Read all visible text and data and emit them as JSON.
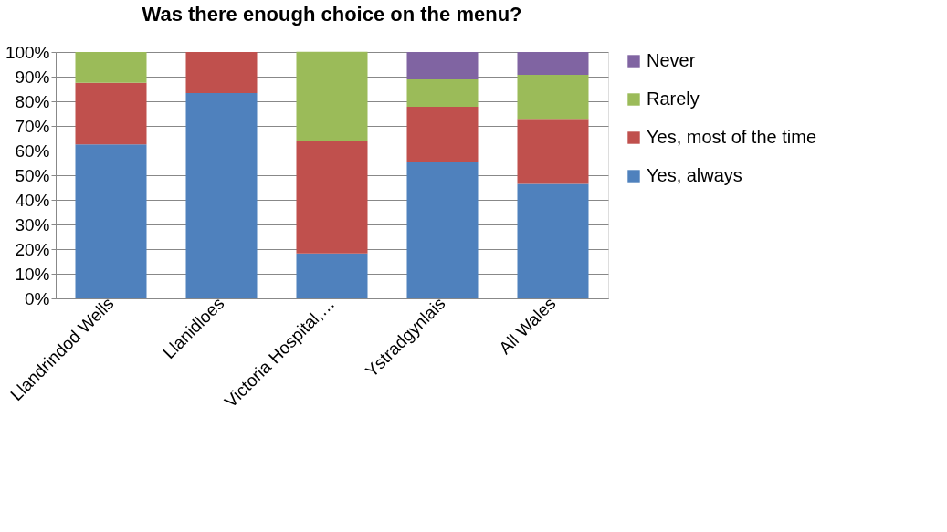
{
  "chart_data": {
    "type": "bar",
    "title": "Was there enough choice on the menu?",
    "stacked": true,
    "categories": [
      "Llandrindod Wells",
      "Llanidloes",
      "Victoria Hospital,…",
      "Ystradgynlais",
      "All Wales"
    ],
    "series": [
      {
        "name": "Yes, always",
        "color": "#4f81bd",
        "values": [
          62.5,
          83.3,
          18.2,
          55.6,
          46.5
        ]
      },
      {
        "name": "Yes, most of the time",
        "color": "#c0504d",
        "values": [
          25,
          16.7,
          45.5,
          22.2,
          26.4
        ]
      },
      {
        "name": "Rarely",
        "color": "#9bbb59",
        "values": [
          12.5,
          null,
          36.4,
          11.1,
          17.8
        ]
      },
      {
        "name": "Never",
        "color": "#8064a2",
        "values": [
          null,
          null,
          null,
          11.1,
          9.3
        ]
      }
    ],
    "ylim": [
      0,
      100
    ],
    "yticks": [
      {
        "value": 0,
        "label": "0%"
      },
      {
        "value": 10,
        "label": "10%"
      },
      {
        "value": 20,
        "label": "20%"
      },
      {
        "value": 30,
        "label": "30%"
      },
      {
        "value": 40,
        "label": "40%"
      },
      {
        "value": 50,
        "label": "50%"
      },
      {
        "value": 60,
        "label": "60%"
      },
      {
        "value": 70,
        "label": "70%"
      },
      {
        "value": 80,
        "label": "80%"
      },
      {
        "value": 90,
        "label": "90%"
      },
      {
        "value": 100,
        "label": "100%"
      }
    ],
    "grid": "y",
    "legend": "right"
  }
}
